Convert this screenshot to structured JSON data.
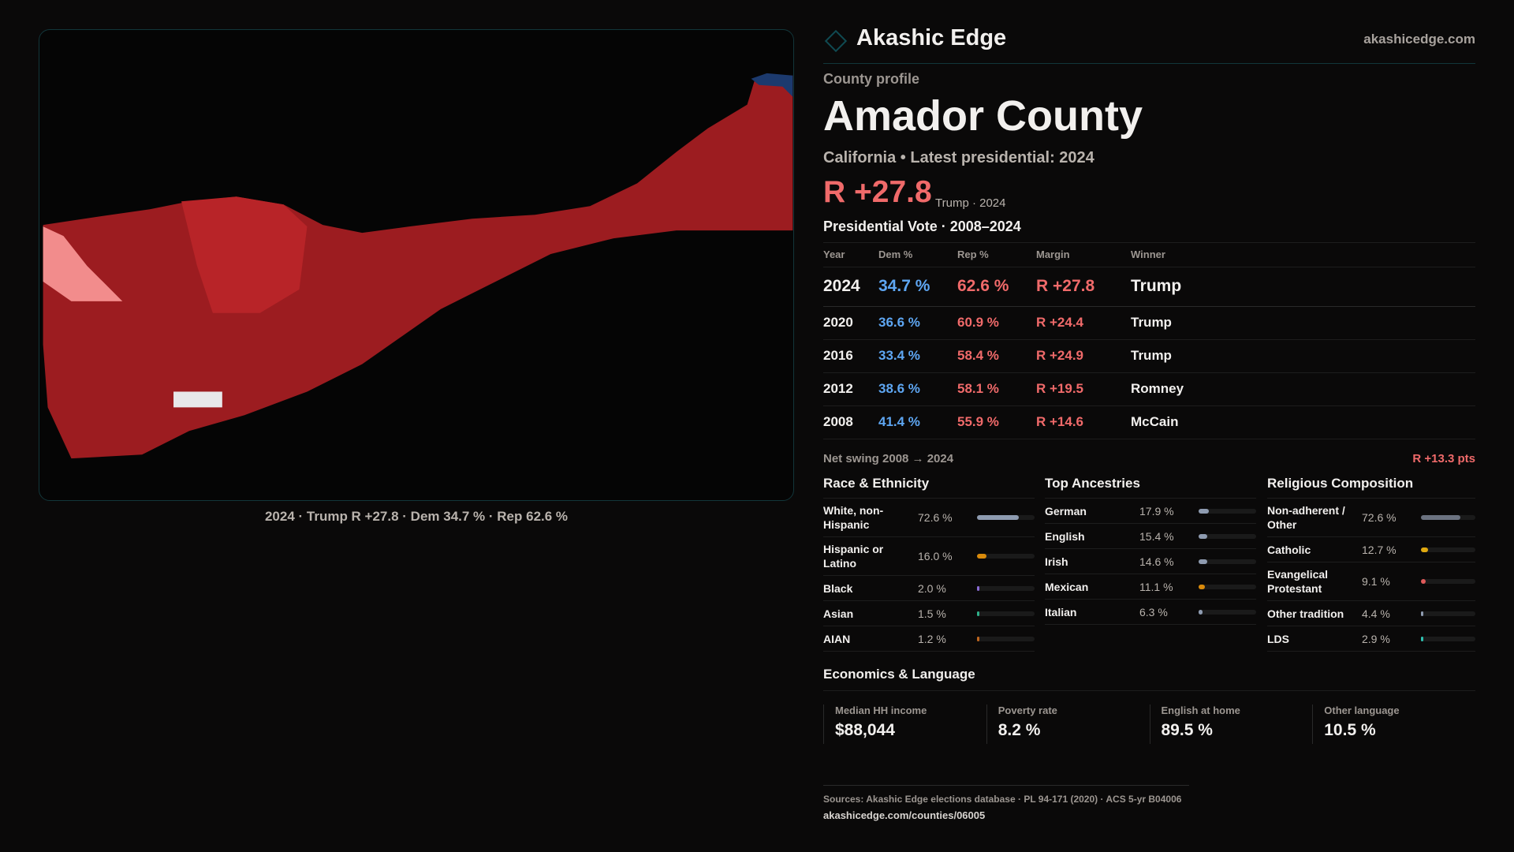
{
  "brand": {
    "name": "Akashic Edge",
    "site": "akashicedge.com"
  },
  "profile": {
    "kicker": "County profile",
    "title": "Amador County",
    "subtitle": "California • Latest presidential: 2024",
    "margin": "R +27.8",
    "margin_label": "Trump · 2024"
  },
  "map": {
    "caption": "2024 · Trump R +27.8 · Dem 34.7 % · Rep 62.6 %",
    "colors": {
      "strong_r": "#9c1c20",
      "mid_r": "#b82428",
      "light_r": "#f28c8c",
      "dem": "#1c3a6e"
    }
  },
  "votes": {
    "title": "Presidential Vote · 2008–2024",
    "headers": [
      "Year",
      "Dem %",
      "Rep %",
      "Margin",
      "Winner"
    ],
    "rows": [
      [
        "2024",
        "34.7 %",
        "62.6 %",
        "R +27.8",
        "Trump"
      ],
      [
        "2020",
        "36.6 %",
        "60.9 %",
        "R +24.4",
        "Trump"
      ],
      [
        "2016",
        "33.4 %",
        "58.4 %",
        "R +24.9",
        "Trump"
      ],
      [
        "2012",
        "38.6 %",
        "58.1 %",
        "R +19.5",
        "Romney"
      ],
      [
        "2008",
        "41.4 %",
        "55.9 %",
        "R +14.6",
        "McCain"
      ]
    ],
    "swing_label": "Net swing 2008 → 2024",
    "swing_value": "R +13.3 pts"
  },
  "race": {
    "title": "Race & Ethnicity",
    "items": [
      {
        "label": "White, non-Hispanic",
        "pct": "72.6 %",
        "value": 72.6,
        "color": "#8e9bb0"
      },
      {
        "label": "Hispanic or Latino",
        "pct": "16.0 %",
        "value": 16.0,
        "color": "#d98a0b"
      },
      {
        "label": "Black",
        "pct": "2.0 %",
        "value": 2.0,
        "color": "#8a6bd6"
      },
      {
        "label": "Asian",
        "pct": "1.5 %",
        "value": 1.5,
        "color": "#2fb08a"
      },
      {
        "label": "AIAN",
        "pct": "1.2 %",
        "value": 1.2,
        "color": "#c0661e"
      }
    ]
  },
  "ancestry": {
    "title": "Top Ancestries",
    "items": [
      {
        "label": "German",
        "pct": "17.9 %",
        "value": 17.9,
        "color": "#8e9bb0"
      },
      {
        "label": "English",
        "pct": "15.4 %",
        "value": 15.4,
        "color": "#8e9bb0"
      },
      {
        "label": "Irish",
        "pct": "14.6 %",
        "value": 14.6,
        "color": "#8e9bb0"
      },
      {
        "label": "Mexican",
        "pct": "11.1 %",
        "value": 11.1,
        "color": "#d98a0b"
      },
      {
        "label": "Italian",
        "pct": "6.3 %",
        "value": 6.3,
        "color": "#8e9bb0"
      }
    ]
  },
  "religion": {
    "title": "Religious Composition",
    "items": [
      {
        "label": "Non-adherent / Other",
        "pct": "72.6 %",
        "value": 72.6,
        "color": "#6b7280"
      },
      {
        "label": "Catholic",
        "pct": "12.7 %",
        "value": 12.7,
        "color": "#e0a910"
      },
      {
        "label": "Evangelical Protestant",
        "pct": "9.1 %",
        "value": 9.1,
        "color": "#e05a5a"
      },
      {
        "label": "Other tradition",
        "pct": "4.4 %",
        "value": 4.4,
        "color": "#8e9bb0"
      },
      {
        "label": "LDS",
        "pct": "2.9 %",
        "value": 2.9,
        "color": "#2fc0b0"
      }
    ]
  },
  "economics": {
    "title": "Economics & Language",
    "stats": [
      {
        "label": "Median HH income",
        "value": "$88,044"
      },
      {
        "label": "Poverty rate",
        "value": "8.2 %"
      },
      {
        "label": "English at home",
        "value": "89.5 %"
      },
      {
        "label": "Other language",
        "value": "10.5 %"
      }
    ]
  },
  "sources": {
    "text": "Sources: Akashic Edge elections database · PL 94-171 (2020) · ACS 5-yr B04006",
    "link": "akashicedge.com/counties/06005"
  }
}
